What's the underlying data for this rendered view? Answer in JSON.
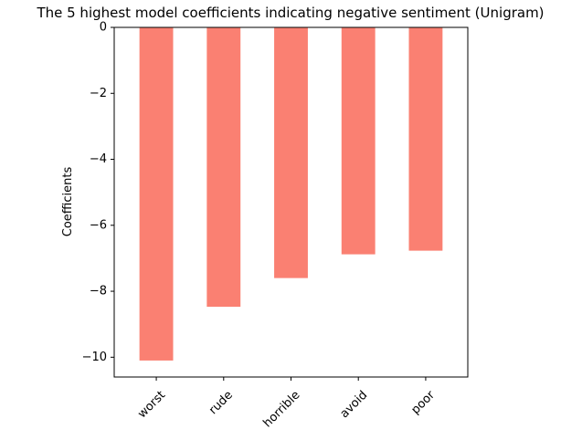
{
  "chart_data": {
    "type": "bar",
    "title": "The 5 highest model coefficients indicating negative sentiment (Unigram)",
    "xlabel": "",
    "ylabel": "Coefficients",
    "categories": [
      "worst",
      "rude",
      "horrible",
      "avoid",
      "poor"
    ],
    "values": [
      -10.1,
      -8.47,
      -7.6,
      -6.88,
      -6.77
    ],
    "ylim": [
      -10.6,
      0
    ],
    "yticks": [
      0,
      -2,
      -4,
      -6,
      -8,
      -10
    ],
    "ytick_labels": [
      "0",
      "−2",
      "−4",
      "−6",
      "−8",
      "−10"
    ],
    "bar_color": "#fa8072",
    "grid": false,
    "legend": "none"
  }
}
